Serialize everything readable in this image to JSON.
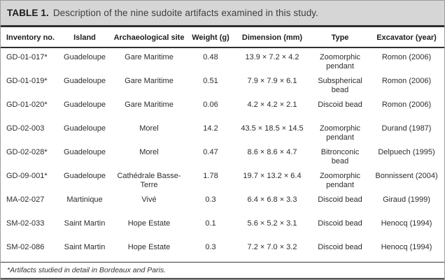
{
  "title": {
    "label": "TABLE 1.",
    "description": "Description of the nine sudoite artifacts examined in this study."
  },
  "table": {
    "columns": [
      "Inventory no.",
      "Island",
      "Archaeological site",
      "Weight (g)",
      "Dimension (mm)",
      "Type",
      "Excavator (year)"
    ],
    "rows": [
      [
        "GD-01-017*",
        "Guadeloupe",
        "Gare Maritime",
        "0.48",
        "13.9 × 7.2 × 4.2",
        "Zoomorphic pendant",
        "Romon (2006)"
      ],
      [
        "GD-01-019*",
        "Guadeloupe",
        "Gare Maritime",
        "0.51",
        "7.9 × 7.9 × 6.1",
        "Subspherical bead",
        "Romon (2006)"
      ],
      [
        "GD-01-020*",
        "Guadeloupe",
        "Gare Maritime",
        "0.06",
        "4.2 × 4.2 × 2.1",
        "Discoid bead",
        "Romon (2006)"
      ],
      [
        "GD-02-003",
        "Guadeloupe",
        "Morel",
        "14.2",
        "43.5 × 18.5 × 14.5",
        "Zoomorphic pendant",
        "Durand (1987)"
      ],
      [
        "GD-02-028*",
        "Guadeloupe",
        "Morel",
        "0.47",
        "8.6 × 8.6 × 4.7",
        "Bitronconic bead",
        "Delpuech (1995)"
      ],
      [
        "GD-09-001*",
        "Guadeloupe",
        "Cathédrale Basse-Terre",
        "1.78",
        "19.7 × 13.2 × 6.4",
        "Zoomorphic pendant",
        "Bonnissent (2004)"
      ],
      [
        "MA-02-027",
        "Martinique",
        "Vivé",
        "0.3",
        "6.4 × 6.8 × 3.3",
        "Discoid bead",
        "Giraud (1999)"
      ],
      [
        "SM-02-033",
        "Saint Martin",
        "Hope Estate",
        "0.1",
        "5.6 × 5.2 × 3.1",
        "Discoid bead",
        "Henocq (1994)"
      ],
      [
        "SM-02-086",
        "Saint Martin",
        "Hope Estate",
        "0.3",
        "7.2 × 7.0 × 3.2",
        "Discoid bead",
        "Henocq (1994)"
      ]
    ]
  },
  "footnote": "*Artifacts studied in detail in Bordeaux and Paris.",
  "colors": {
    "title_bar_bg": "#d6d6d6",
    "rule_dark": "#2f2f2f",
    "text": "#2c2c2c",
    "border": "#9e9e9e"
  }
}
